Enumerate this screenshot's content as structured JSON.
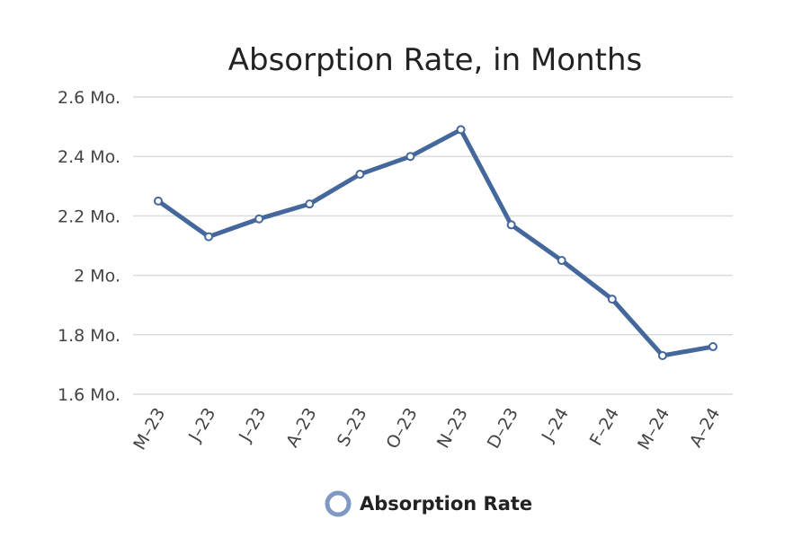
{
  "chart_data": {
    "type": "line",
    "title": "Absorption Rate, in Months",
    "categories": [
      "M–23",
      "J–23",
      "J–23",
      "A–23",
      "S–23",
      "O–23",
      "N–23",
      "D–23",
      "J–24",
      "F–24",
      "M–24",
      "A–24"
    ],
    "series": [
      {
        "name": "Absorption Rate",
        "values": [
          2.25,
          2.13,
          2.19,
          2.24,
          2.34,
          2.4,
          2.49,
          2.17,
          2.05,
          1.92,
          1.73,
          1.76
        ]
      }
    ],
    "yticks": [
      1.6,
      1.8,
      2.0,
      2.2,
      2.4,
      2.6
    ],
    "ytick_labels": [
      "1.6 Mo.",
      "1.8 Mo.",
      "2 Mo.",
      "2.2 Mo.",
      "2.4 Mo.",
      "2.6 Mo."
    ],
    "ylim": [
      1.6,
      2.6
    ],
    "grid": true,
    "legend": "bottom-center",
    "colors": {
      "line": "#44679c",
      "marker_fill": "#ffffff",
      "grid": "#dcdcdc",
      "legend_ring": "#7f99c2"
    }
  }
}
